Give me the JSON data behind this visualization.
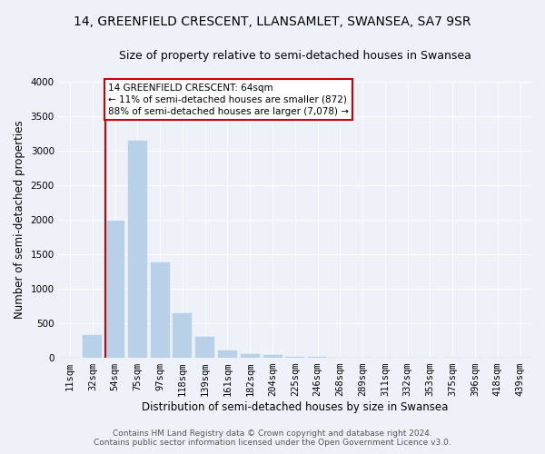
{
  "title": "14, GREENFIELD CRESCENT, LLANSAMLET, SWANSEA, SA7 9SR",
  "subtitle": "Size of property relative to semi-detached houses in Swansea",
  "xlabel": "Distribution of semi-detached houses by size in Swansea",
  "ylabel": "Number of semi-detached properties",
  "categories": [
    "11sqm",
    "32sqm",
    "54sqm",
    "75sqm",
    "97sqm",
    "118sqm",
    "139sqm",
    "161sqm",
    "182sqm",
    "204sqm",
    "225sqm",
    "246sqm",
    "268sqm",
    "289sqm",
    "311sqm",
    "332sqm",
    "353sqm",
    "375sqm",
    "396sqm",
    "418sqm",
    "439sqm"
  ],
  "values": [
    5,
    330,
    1985,
    3150,
    1380,
    640,
    310,
    105,
    55,
    35,
    15,
    10,
    5,
    5,
    3,
    3,
    2,
    2,
    1,
    1,
    1
  ],
  "bar_color": "#b8d0e8",
  "bar_edge_color": "#b8d0e8",
  "vline_x_index": 2,
  "annotation_text": "14 GREENFIELD CRESCENT: 64sqm\n← 11% of semi-detached houses are smaller (872)\n88% of semi-detached houses are larger (7,078) →",
  "annotation_box_color": "#ffffff",
  "annotation_box_edge": "#cc0000",
  "vline_color": "#cc0000",
  "ylim": [
    0,
    4000
  ],
  "yticks": [
    0,
    500,
    1000,
    1500,
    2000,
    2500,
    3000,
    3500,
    4000
  ],
  "footer_line1": "Contains HM Land Registry data © Crown copyright and database right 2024.",
  "footer_line2": "Contains public sector information licensed under the Open Government Licence v3.0.",
  "background_color": "#eef2f8",
  "plot_bg_color": "#eef2f8",
  "grid_color": "#ffffff",
  "title_fontsize": 10,
  "subtitle_fontsize": 9,
  "axis_label_fontsize": 8.5,
  "tick_fontsize": 7.5,
  "annotation_fontsize": 7.5,
  "footer_fontsize": 6.5
}
